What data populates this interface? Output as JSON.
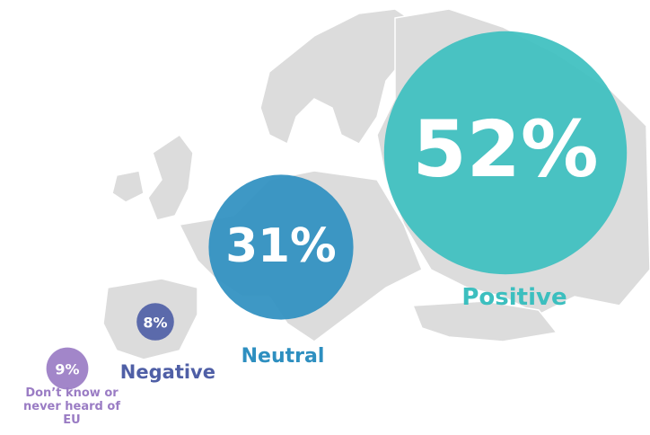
{
  "chart_data": {
    "type": "bubble",
    "categories": [
      "Positive",
      "Neutral",
      "Negative",
      "Don’t know or never heard of EU"
    ],
    "values": [
      52,
      31,
      8,
      9
    ],
    "value_labels": [
      "52%",
      "31%",
      "8%",
      "9%"
    ],
    "colors": [
      "#3cbfbf",
      "#2e8fc0",
      "#4f5fa6",
      "#9a7cc4"
    ]
  }
}
